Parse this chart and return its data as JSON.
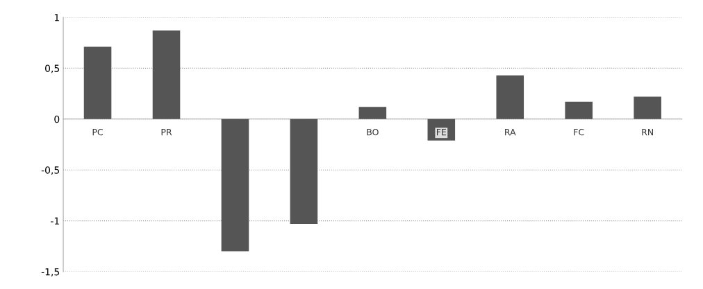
{
  "chart_data": {
    "type": "bar",
    "categories": [
      "PC",
      "PR",
      null,
      null,
      "BO",
      "FE",
      "RA",
      "FC",
      "RN"
    ],
    "values": [
      0.71,
      0.87,
      -1.3,
      -1.03,
      0.12,
      -0.21,
      0.43,
      0.17,
      0.22
    ],
    "color": "#555555",
    "ylim": [
      -1.5,
      1
    ],
    "yticks": [
      {
        "value": -1.5,
        "label": "-1,5"
      },
      {
        "value": -1,
        "label": "-1"
      },
      {
        "value": -0.5,
        "label": "-0,5"
      },
      0,
      {
        "value": 0.5,
        "label": "0,5"
      },
      1
    ],
    "grid": "y"
  }
}
